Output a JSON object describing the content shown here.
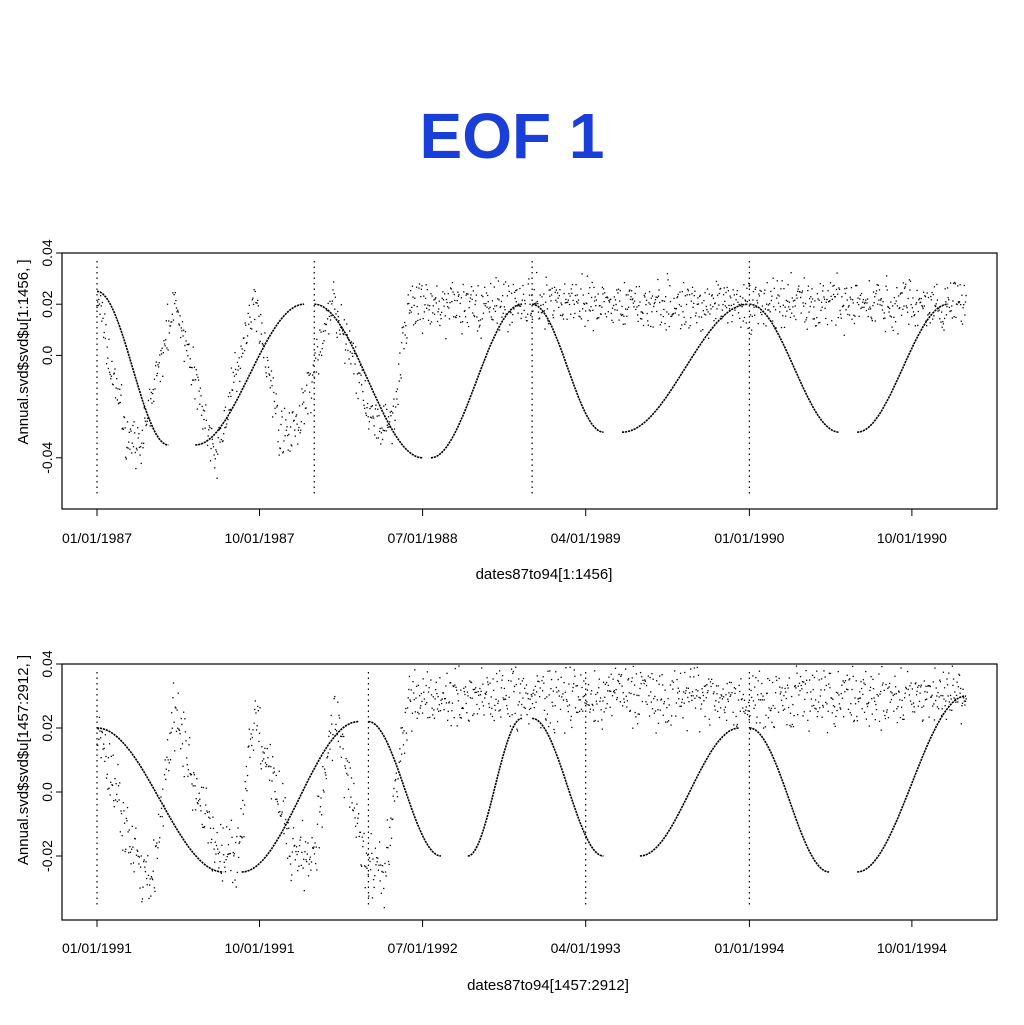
{
  "title": "EOF 1",
  "chart_data": [
    {
      "type": "scatter",
      "xlabel": "dates87to94[1:1456]",
      "ylabel": "Annual.svd$svd$u[1:1456, ]",
      "x_range": [
        "01/01/1987",
        "12/31/1990"
      ],
      "x_ticks": [
        "01/01/1987",
        "10/01/1987",
        "07/01/1988",
        "04/01/1989",
        "01/01/1990",
        "10/01/1990"
      ],
      "ylim": [
        -0.06,
        0.04
      ],
      "y_ticks": [
        "-0.04",
        "0.0",
        "0.02",
        "0.04"
      ],
      "grid": false,
      "n_points": 1456,
      "series": [
        {
          "mode": "points",
          "x_start": "01/01/1987",
          "x_end": "12/31/1990",
          "mean_curve": [
            [
              0.0,
              0.025
            ],
            [
              0.14,
              -0.035
            ],
            [
              0.2,
              -0.035
            ],
            [
              0.35,
              0.02
            ],
            [
              0.36,
              0.02
            ],
            [
              0.54,
              -0.04
            ],
            [
              0.55,
              -0.04
            ],
            [
              0.72,
              0.02
            ],
            [
              0.73,
              0.02
            ],
            [
              0.84,
              -0.03
            ],
            [
              0.92,
              -0.03
            ],
            [
              1.08,
              0.02
            ],
            [
              1.09,
              0.02
            ],
            [
              1.24,
              -0.02
            ],
            [
              1.32,
              -0.03
            ],
            [
              1.36,
              -0.028
            ],
            [
              1.43,
              0.02
            ]
          ],
          "spread": 0.006
        },
        {
          "mode": "line",
          "segments": [
            {
              "x": [
                "01/01/1987",
                "05/01/1987"
              ],
              "y": [
                0.025,
                -0.035
              ]
            },
            {
              "x": [
                "06/15/1987",
                "12/15/1987"
              ],
              "y": [
                -0.035,
                0.02
              ]
            },
            {
              "x": [
                "01/01/1988",
                "07/01/1988"
              ],
              "y": [
                0.02,
                -0.04
              ]
            },
            {
              "x": [
                "07/15/1988",
                "12/15/1988"
              ],
              "y": [
                -0.04,
                0.02
              ]
            },
            {
              "x": [
                "01/01/1989",
                "05/01/1989"
              ],
              "y": [
                0.02,
                -0.03
              ]
            },
            {
              "x": [
                "06/01/1989",
                "12/30/1989"
              ],
              "y": [
                -0.03,
                0.02
              ]
            },
            {
              "x": [
                "01/01/1990",
                "06/01/1990"
              ],
              "y": [
                0.02,
                -0.03
              ]
            },
            {
              "x": [
                "07/01/1990",
                "12/01/1990"
              ],
              "y": [
                -0.03,
                0.02
              ]
            }
          ]
        },
        {
          "mode": "year-markers",
          "x": [
            "01/01/1987",
            "01/01/1988",
            "01/01/1989",
            "01/01/1990"
          ]
        }
      ]
    },
    {
      "type": "scatter",
      "xlabel": "dates87to94[1457:2912]",
      "ylabel": "Annual.svd$svd$u[1457:2912, ]",
      "x_range": [
        "01/01/1991",
        "12/31/1994"
      ],
      "x_ticks": [
        "01/01/1991",
        "10/01/1991",
        "07/01/1992",
        "04/01/1993",
        "01/01/1994",
        "10/01/1994"
      ],
      "ylim": [
        -0.04,
        0.04
      ],
      "y_ticks": [
        "-0.02",
        "0.0",
        "0.02",
        "0.04"
      ],
      "grid": false,
      "n_points": 1456,
      "series": [
        {
          "mode": "points",
          "x_start": "01/01/1991",
          "x_end": "12/31/1994",
          "mean_curve": [
            [
              0.0,
              0.02
            ],
            [
              0.2,
              -0.025
            ],
            [
              0.26,
              -0.025
            ],
            [
              0.35,
              0.022
            ],
            [
              0.37,
              0.022
            ],
            [
              0.55,
              -0.02
            ],
            [
              0.65,
              -0.02
            ],
            [
              0.72,
              0.023
            ],
            [
              0.74,
              0.023
            ],
            [
              0.9,
              -0.02
            ],
            [
              1.0,
              -0.02
            ],
            [
              1.08,
              0.02
            ],
            [
              1.1,
              0.02
            ],
            [
              1.25,
              -0.025
            ],
            [
              1.32,
              -0.025
            ],
            [
              1.44,
              0.03
            ]
          ],
          "spread": 0.006
        },
        {
          "mode": "line",
          "segments": [
            {
              "x": [
                "01/01/1991",
                "08/01/1991"
              ],
              "y": [
                0.02,
                -0.025
              ]
            },
            {
              "x": [
                "09/01/1991",
                "03/15/1992"
              ],
              "y": [
                -0.025,
                0.022
              ]
            },
            {
              "x": [
                "04/01/1992",
                "08/01/1992"
              ],
              "y": [
                0.022,
                -0.02
              ]
            },
            {
              "x": [
                "09/15/1992",
                "12/15/1992"
              ],
              "y": [
                -0.02,
                0.023
              ]
            },
            {
              "x": [
                "01/01/1993",
                "05/01/1993"
              ],
              "y": [
                0.023,
                -0.02
              ]
            },
            {
              "x": [
                "07/01/1993",
                "12/15/1993"
              ],
              "y": [
                -0.02,
                0.02
              ]
            },
            {
              "x": [
                "01/01/1994",
                "05/15/1994"
              ],
              "y": [
                0.02,
                -0.025
              ]
            },
            {
              "x": [
                "07/01/1994",
                "12/31/1994"
              ],
              "y": [
                -0.025,
                0.03
              ]
            }
          ]
        },
        {
          "mode": "year-markers",
          "x": [
            "01/01/1991",
            "04/01/1992",
            "04/01/1993",
            "01/01/1994"
          ]
        }
      ]
    }
  ]
}
